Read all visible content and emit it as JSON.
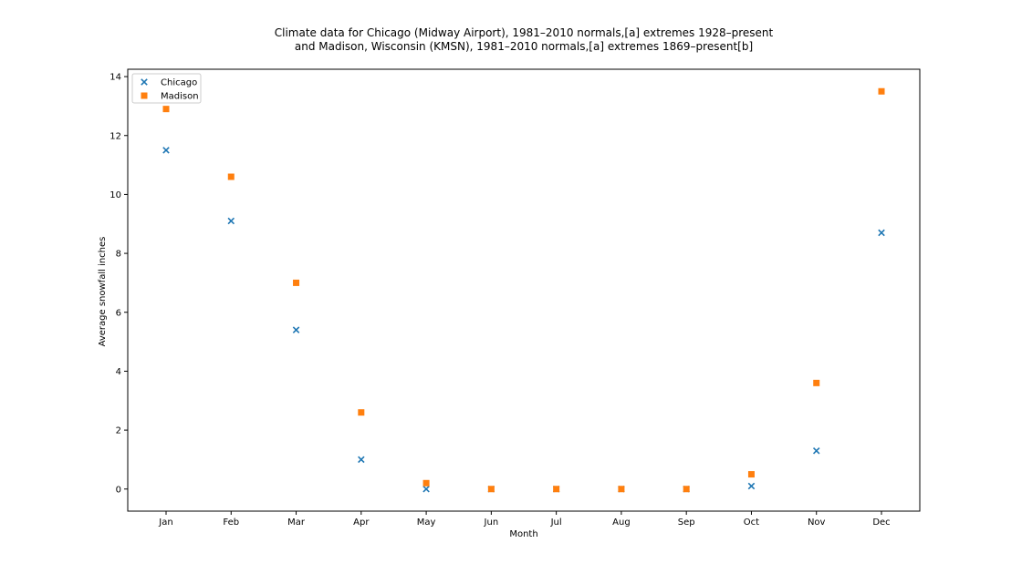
{
  "chart_data": {
    "type": "scatter",
    "title_line1": "Climate data for Chicago (Midway Airport), 1981–2010 normals,[a] extremes 1928–present",
    "title_line2": "and Madison, Wisconsin (KMSN), 1981–2010 normals,[a] extremes 1869–present[b]",
    "xlabel": "Month",
    "ylabel": "Average snowfall inches",
    "categories": [
      "Jan",
      "Feb",
      "Mar",
      "Apr",
      "May",
      "Jun",
      "Jul",
      "Aug",
      "Sep",
      "Oct",
      "Nov",
      "Dec"
    ],
    "ylim": [
      -0.75,
      14.25
    ],
    "yticks": [
      0,
      2,
      4,
      6,
      8,
      10,
      12,
      14
    ],
    "grid": false,
    "legend_position": "top-left",
    "series": [
      {
        "name": "Chicago",
        "marker": "x",
        "color": "#1f77b4",
        "values": [
          11.5,
          9.1,
          5.4,
          1.0,
          0.0,
          0.0,
          0.0,
          0.0,
          0.0,
          0.1,
          1.3,
          8.7
        ]
      },
      {
        "name": "Madison",
        "marker": "square",
        "color": "#ff7f0e",
        "values": [
          12.9,
          10.6,
          7.0,
          2.6,
          0.2,
          0.0,
          0.0,
          0.0,
          0.0,
          0.5,
          3.6,
          13.5
        ]
      }
    ]
  }
}
